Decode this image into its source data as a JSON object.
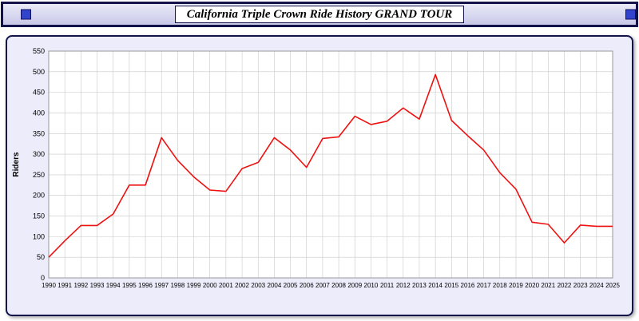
{
  "page": {
    "title": "California Triple Crown Ride History GRAND TOUR"
  },
  "colors": {
    "line": "#ee1111",
    "grid": "#c8c8c8",
    "plot_bg": "#ffffff",
    "panel_bg": "#ececfa",
    "border": "#14144a",
    "corner_square": "#3344cc"
  },
  "chart_data": {
    "type": "line",
    "title": "California Triple Crown Ride History GRAND TOUR",
    "xlabel": "",
    "ylabel": "Riders",
    "ylim": [
      0,
      550
    ],
    "ytick_step": 50,
    "grid": true,
    "legend": "none",
    "x": [
      1990,
      1991,
      1992,
      1993,
      1994,
      1995,
      1996,
      1997,
      1998,
      1999,
      2000,
      2001,
      2002,
      2003,
      2004,
      2005,
      2006,
      2007,
      2008,
      2009,
      2010,
      2011,
      2012,
      2013,
      2014,
      2015,
      2016,
      2017,
      2018,
      2019,
      2020,
      2021,
      2022,
      2023,
      2024,
      2025
    ],
    "series": [
      {
        "name": "Riders",
        "values": [
          50,
          90,
          127,
          127,
          155,
          225,
          225,
          340,
          285,
          245,
          213,
          210,
          265,
          280,
          340,
          310,
          268,
          338,
          342,
          392,
          372,
          380,
          412,
          385,
          493,
          382,
          345,
          310,
          255,
          215,
          135,
          130,
          85,
          128,
          125,
          125
        ]
      }
    ]
  }
}
